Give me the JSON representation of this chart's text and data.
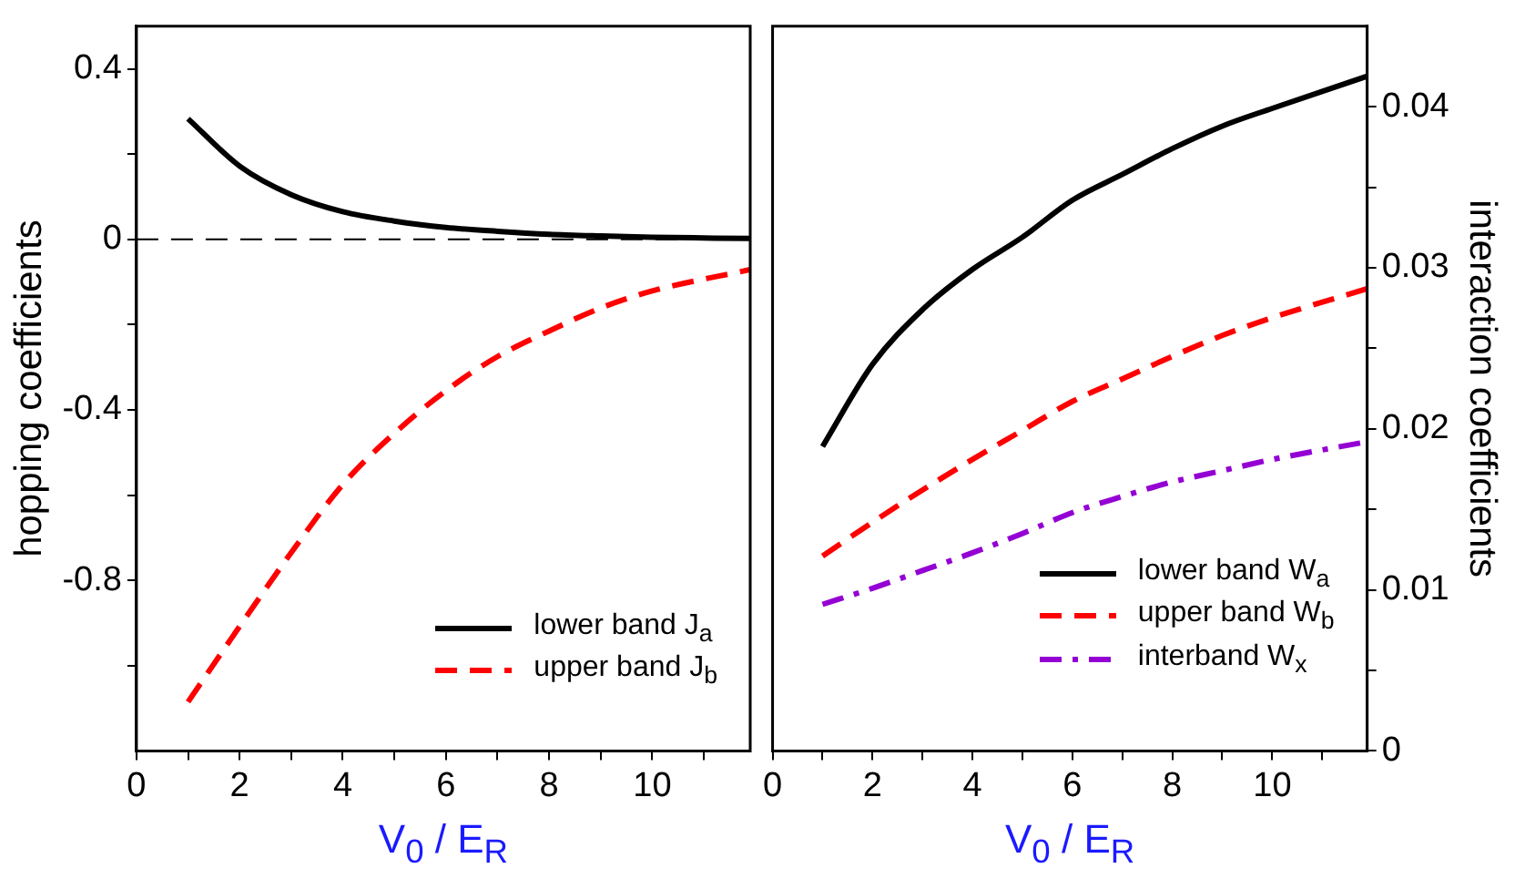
{
  "chart_data": [
    {
      "type": "line",
      "xlabel": "V$_{0}$ / E$_{R}$",
      "ylabel": "hopping coefficients",
      "xlim": [
        0,
        11.9
      ],
      "xticks": [
        0,
        {
          "value": 1,
          "label": null
        },
        2,
        {
          "value": 3,
          "label": null
        },
        4,
        {
          "value": 5,
          "label": null
        },
        6,
        {
          "value": 7,
          "label": null
        },
        8,
        {
          "value": 9,
          "label": null
        },
        10,
        {
          "value": 11,
          "label": null
        }
      ],
      "ylim": [
        -1.2,
        0.5
      ],
      "yticks": [
        {
          "value": -1.0,
          "label": null
        },
        -0.8,
        {
          "value": -0.6,
          "label": null
        },
        -0.4,
        {
          "value": -0.2,
          "label": null
        },
        0,
        {
          "value": 0.2,
          "label": null
        },
        0.4
      ],
      "grid": false,
      "legend": "bottom right",
      "x": [
        1,
        2,
        3,
        4,
        5,
        6,
        7,
        8,
        9,
        10,
        11.9
      ],
      "series": [
        {
          "name": "lower band J$_{a}$",
          "color": "#000000",
          "line_style": "solid",
          "values": [
            0.283,
            0.172,
            0.105,
            0.065,
            0.043,
            0.028,
            0.019,
            0.012,
            0.008,
            0.005,
            0.002
          ]
        },
        {
          "name": "upper band J$_{b}$",
          "color": "#ff0000",
          "line_style": "dashed",
          "values": [
            -1.085,
            -0.908,
            -0.735,
            -0.575,
            -0.455,
            -0.355,
            -0.275,
            -0.215,
            -0.161,
            -0.121,
            -0.071
          ]
        }
      ],
      "ref_lines": [
        {
          "axis": "y",
          "value": 0,
          "color": "#000000",
          "line_style": "dashed"
        }
      ]
    },
    {
      "type": "line",
      "xlabel": "V$_{0}$ / E$_{R}$",
      "y2label": "interaction coefficients",
      "xlim": [
        0,
        11.9
      ],
      "xticks": [
        0,
        {
          "value": 1,
          "label": null
        },
        2,
        {
          "value": 3,
          "label": null
        },
        4,
        {
          "value": 5,
          "label": null
        },
        6,
        {
          "value": 7,
          "label": null
        },
        8,
        {
          "value": 9,
          "label": null
        },
        10,
        {
          "value": 11,
          "label": null
        }
      ],
      "y2lim": [
        0,
        0.045
      ],
      "y2ticks": [
        0,
        {
          "value": 0.005,
          "label": null
        },
        0.01,
        {
          "value": 0.015,
          "label": null
        },
        0.02,
        {
          "value": 0.025,
          "label": null
        },
        0.03,
        {
          "value": 0.035,
          "label": null
        },
        0.04
      ],
      "grid": false,
      "legend": "bottom right",
      "x": [
        1,
        2,
        3,
        4,
        5,
        6,
        7,
        8,
        9,
        10,
        11.9
      ],
      "series": [
        {
          "name": "lower band W$_{a}$",
          "color": "#000000",
          "line_style": "solid",
          "axis": "y2",
          "values": [
            0.0189,
            0.024,
            0.0274,
            0.0299,
            0.0319,
            0.0342,
            0.0358,
            0.0374,
            0.0388,
            0.0399,
            0.0419
          ]
        },
        {
          "name": "upper band W$_{b}$",
          "color": "#ff0000",
          "line_style": "dashed",
          "axis": "y2",
          "values": [
            0.0121,
            0.0142,
            0.0162,
            0.0181,
            0.0199,
            0.0217,
            0.0231,
            0.0245,
            0.0258,
            0.0269,
            0.0287
          ]
        },
        {
          "name": "interband W$_{x}$",
          "color": "#9400d3",
          "line_style": "dashdot",
          "axis": "y2",
          "values": [
            0.0091,
            0.0101,
            0.0112,
            0.0123,
            0.0135,
            0.0148,
            0.0158,
            0.0167,
            0.0174,
            0.0181,
            0.0192
          ]
        }
      ]
    }
  ]
}
